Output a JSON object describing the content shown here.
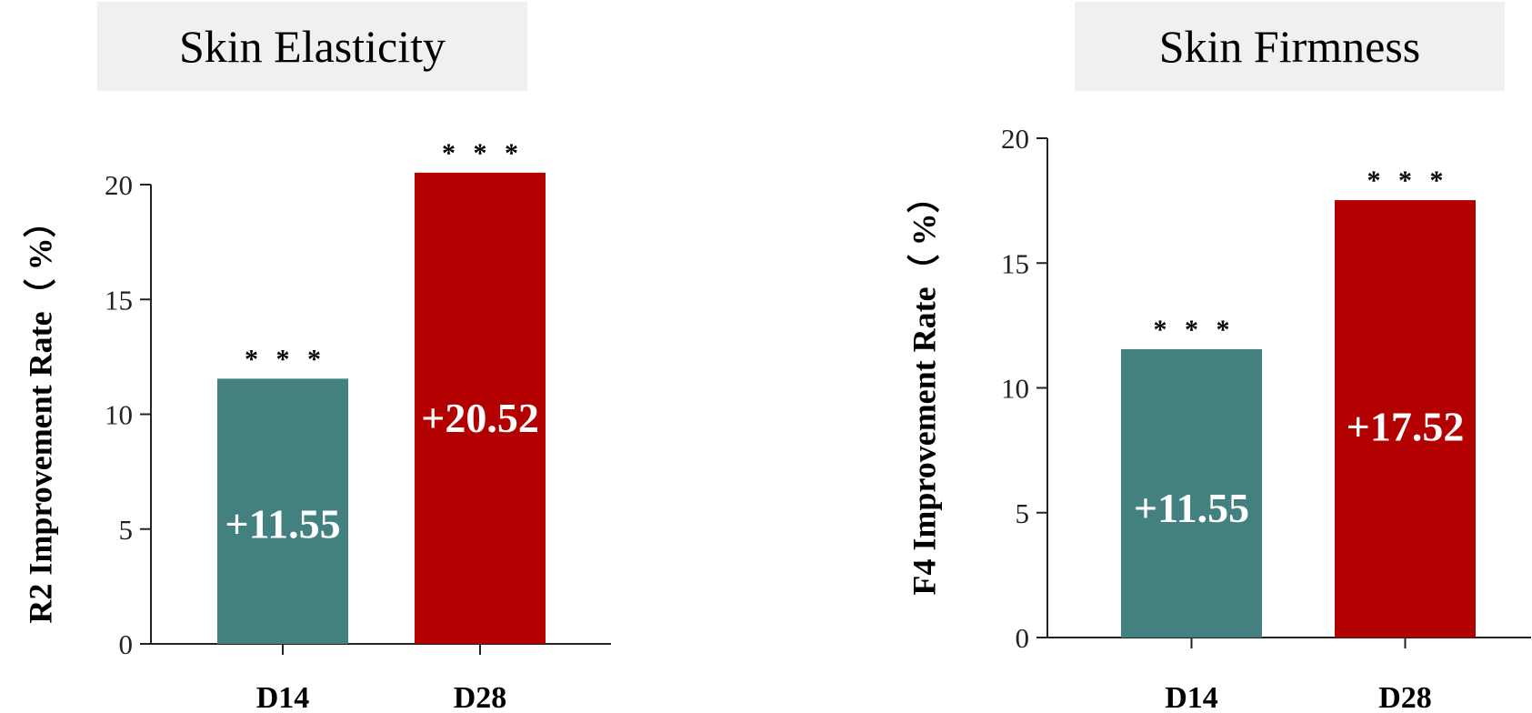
{
  "chart_data": [
    {
      "type": "bar",
      "title": "Skin Elasticity",
      "ylabel": "R2 Improvement Rate（ %）",
      "categories": [
        "D14",
        "D28"
      ],
      "values": [
        11.55,
        20.52
      ],
      "value_labels": [
        "+11.55",
        "+20.52"
      ],
      "significance": [
        "* * *",
        "* * *"
      ],
      "colors": [
        "#438080",
        "#b30000"
      ],
      "ylim": [
        0,
        20
      ],
      "yticks": [
        0,
        5,
        10,
        15,
        20
      ],
      "grid": false
    },
    {
      "type": "bar",
      "title": "Skin Firmness",
      "ylabel": "F4 Improvement Rate（ %）",
      "categories": [
        "D14",
        "D28"
      ],
      "values": [
        11.55,
        17.52
      ],
      "value_labels": [
        "+11.55",
        "+17.52"
      ],
      "significance": [
        "* * *",
        "* * *"
      ],
      "colors": [
        "#438080",
        "#b30000"
      ],
      "ylim": [
        0,
        20
      ],
      "yticks": [
        0,
        5,
        10,
        15,
        20
      ],
      "grid": false
    }
  ]
}
